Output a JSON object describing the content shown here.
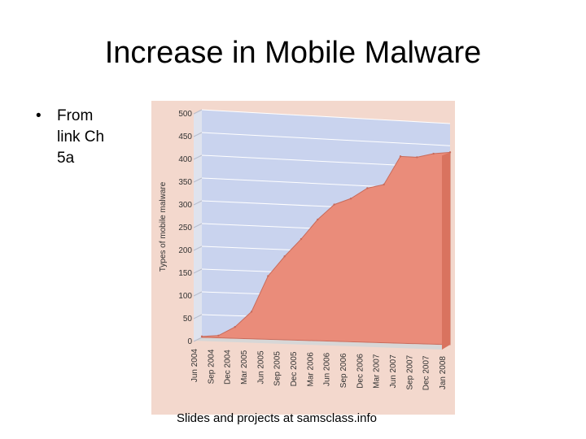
{
  "slide": {
    "title": "Increase in Mobile Malware",
    "bullets": [
      "From link Ch 5a"
    ],
    "footer": "Slides and projects at samsclass.info"
  },
  "colors": {
    "area_fill": "#ea8c7a",
    "plot_background": "#c9d3ee",
    "panel_background": "#f3d8cd"
  },
  "chart_data": {
    "type": "area",
    "title": "",
    "xlabel": "",
    "ylabel": "Types of mobile malware",
    "ylim": [
      0,
      500
    ],
    "yticks": [
      0,
      50,
      100,
      150,
      200,
      250,
      300,
      350,
      400,
      450,
      500
    ],
    "grid": true,
    "categories": [
      "Jun 2004",
      "Sep 2004",
      "Dec 2004",
      "Mar 2005",
      "Jun 2005",
      "Sep 2005",
      "Dec 2005",
      "Mar 2006",
      "Jun 2006",
      "Sep 2006",
      "Dec 2006",
      "Mar 2007",
      "Jun 2007",
      "Sep 2007",
      "Dec 2007",
      "Jan 2008"
    ],
    "values": [
      2,
      5,
      25,
      60,
      140,
      185,
      225,
      270,
      305,
      320,
      345,
      355,
      420,
      420,
      430,
      435
    ]
  }
}
